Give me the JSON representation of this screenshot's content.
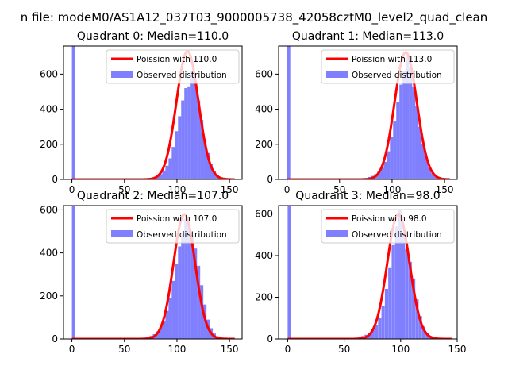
{
  "suptitle": "n file: modeM0/AS1A12_037T03_9000005738_42058cztM0_level2_quad_clean",
  "colors": {
    "poisson": "#ff0000",
    "hist": "#8080ff"
  },
  "chart_data": [
    {
      "type": "bar",
      "title": "Quadrant 0: Median=110.0",
      "xlim": [
        -8,
        162
      ],
      "ylim": [
        0,
        760
      ],
      "xticks": [
        0,
        50,
        100,
        150
      ],
      "yticks": [
        0,
        200,
        400,
        600
      ],
      "legend": [
        "Poission with 110.0",
        "Observed distribution"
      ],
      "legend_position": "top-right",
      "median": 110.0,
      "sigma": 10.5,
      "poisson_peak": 730,
      "poisson_range": [
        0,
        155
      ],
      "hist_bin_width": 3.1,
      "hist_bins": [
        {
          "x": 0,
          "y": 760
        },
        {
          "x": 68,
          "y": 3
        },
        {
          "x": 71,
          "y": 6
        },
        {
          "x": 74,
          "y": 9
        },
        {
          "x": 77,
          "y": 12
        },
        {
          "x": 80,
          "y": 18
        },
        {
          "x": 83,
          "y": 30
        },
        {
          "x": 86,
          "y": 50
        },
        {
          "x": 89,
          "y": 78
        },
        {
          "x": 92,
          "y": 120
        },
        {
          "x": 95,
          "y": 185
        },
        {
          "x": 98,
          "y": 275
        },
        {
          "x": 101,
          "y": 360
        },
        {
          "x": 104,
          "y": 450
        },
        {
          "x": 107,
          "y": 520
        },
        {
          "x": 110,
          "y": 530
        },
        {
          "x": 113,
          "y": 620
        },
        {
          "x": 116,
          "y": 560
        },
        {
          "x": 119,
          "y": 450
        },
        {
          "x": 122,
          "y": 340
        },
        {
          "x": 125,
          "y": 230
        },
        {
          "x": 128,
          "y": 150
        },
        {
          "x": 131,
          "y": 90
        },
        {
          "x": 134,
          "y": 50
        },
        {
          "x": 137,
          "y": 25
        },
        {
          "x": 140,
          "y": 12
        },
        {
          "x": 143,
          "y": 5
        }
      ]
    },
    {
      "type": "bar",
      "title": "Quadrant 1: Median=113.0",
      "xlim": [
        -8,
        162
      ],
      "ylim": [
        0,
        760
      ],
      "xticks": [
        0,
        50,
        100,
        150
      ],
      "yticks": [
        0,
        200,
        400,
        600
      ],
      "legend": [
        "Poission with 113.0",
        "Observed distribution"
      ],
      "legend_position": "top-right",
      "median": 113.0,
      "sigma": 10.6,
      "poisson_peak": 725,
      "poisson_range": [
        0,
        155
      ],
      "hist_bin_width": 3.1,
      "hist_bins": [
        {
          "x": 0,
          "y": 760
        },
        {
          "x": 71,
          "y": 4
        },
        {
          "x": 74,
          "y": 8
        },
        {
          "x": 77,
          "y": 14
        },
        {
          "x": 80,
          "y": 20
        },
        {
          "x": 83,
          "y": 30
        },
        {
          "x": 86,
          "y": 45
        },
        {
          "x": 89,
          "y": 65
        },
        {
          "x": 92,
          "y": 100
        },
        {
          "x": 95,
          "y": 160
        },
        {
          "x": 98,
          "y": 240
        },
        {
          "x": 101,
          "y": 330
        },
        {
          "x": 104,
          "y": 440
        },
        {
          "x": 107,
          "y": 540
        },
        {
          "x": 110,
          "y": 620
        },
        {
          "x": 113,
          "y": 700
        },
        {
          "x": 116,
          "y": 640
        },
        {
          "x": 119,
          "y": 530
        },
        {
          "x": 122,
          "y": 420
        },
        {
          "x": 125,
          "y": 300
        },
        {
          "x": 128,
          "y": 200
        },
        {
          "x": 131,
          "y": 120
        },
        {
          "x": 134,
          "y": 70
        },
        {
          "x": 137,
          "y": 35
        },
        {
          "x": 140,
          "y": 15
        },
        {
          "x": 143,
          "y": 6
        }
      ]
    },
    {
      "type": "bar",
      "title": "Quadrant 2: Median=107.0",
      "xlim": [
        -8,
        162
      ],
      "ylim": [
        0,
        620
      ],
      "xticks": [
        0,
        50,
        100,
        150
      ],
      "yticks": [
        0,
        200,
        400,
        600
      ],
      "legend": [
        "Poission with 107.0",
        "Observed distribution"
      ],
      "legend_position": "top-right",
      "median": 107.0,
      "sigma": 10.3,
      "poisson_peak": 580,
      "poisson_range": [
        0,
        155
      ],
      "hist_bin_width": 3.1,
      "hist_bins": [
        {
          "x": 0,
          "y": 620
        },
        {
          "x": 65,
          "y": 3
        },
        {
          "x": 68,
          "y": 6
        },
        {
          "x": 71,
          "y": 10
        },
        {
          "x": 74,
          "y": 15
        },
        {
          "x": 77,
          "y": 22
        },
        {
          "x": 80,
          "y": 35
        },
        {
          "x": 83,
          "y": 55
        },
        {
          "x": 86,
          "y": 85
        },
        {
          "x": 89,
          "y": 130
        },
        {
          "x": 92,
          "y": 190
        },
        {
          "x": 95,
          "y": 270
        },
        {
          "x": 98,
          "y": 350
        },
        {
          "x": 101,
          "y": 430
        },
        {
          "x": 104,
          "y": 490
        },
        {
          "x": 107,
          "y": 560
        },
        {
          "x": 110,
          "y": 540
        },
        {
          "x": 113,
          "y": 480
        },
        {
          "x": 116,
          "y": 420
        },
        {
          "x": 119,
          "y": 340
        },
        {
          "x": 122,
          "y": 250
        },
        {
          "x": 125,
          "y": 160
        },
        {
          "x": 128,
          "y": 90
        },
        {
          "x": 131,
          "y": 50
        },
        {
          "x": 134,
          "y": 25
        },
        {
          "x": 137,
          "y": 12
        },
        {
          "x": 140,
          "y": 5
        }
      ]
    },
    {
      "type": "bar",
      "title": "Quadrant 3: Median=98.0",
      "xlim": [
        -8,
        150
      ],
      "ylim": [
        0,
        640
      ],
      "xticks": [
        0,
        50,
        100,
        150
      ],
      "yticks": [
        0,
        200,
        400,
        600
      ],
      "legend": [
        "Poission with 98.0",
        "Observed distribution"
      ],
      "legend_position": "top-right",
      "median": 98.0,
      "sigma": 9.9,
      "poisson_peak": 600,
      "poisson_range": [
        0,
        145
      ],
      "hist_bin_width": 2.9,
      "hist_bins": [
        {
          "x": 0,
          "y": 640
        },
        {
          "x": 56,
          "y": 3
        },
        {
          "x": 59,
          "y": 5
        },
        {
          "x": 62,
          "y": 9
        },
        {
          "x": 65,
          "y": 14
        },
        {
          "x": 68,
          "y": 20
        },
        {
          "x": 71,
          "y": 30
        },
        {
          "x": 74,
          "y": 45
        },
        {
          "x": 77,
          "y": 65
        },
        {
          "x": 80,
          "y": 100
        },
        {
          "x": 83,
          "y": 160
        },
        {
          "x": 86,
          "y": 240
        },
        {
          "x": 89,
          "y": 340
        },
        {
          "x": 92,
          "y": 450
        },
        {
          "x": 95,
          "y": 540
        },
        {
          "x": 98,
          "y": 620
        },
        {
          "x": 101,
          "y": 510
        },
        {
          "x": 104,
          "y": 430
        },
        {
          "x": 107,
          "y": 370
        },
        {
          "x": 110,
          "y": 290
        },
        {
          "x": 113,
          "y": 190
        },
        {
          "x": 116,
          "y": 110
        },
        {
          "x": 119,
          "y": 60
        },
        {
          "x": 122,
          "y": 30
        },
        {
          "x": 125,
          "y": 14
        },
        {
          "x": 128,
          "y": 6
        }
      ]
    }
  ]
}
